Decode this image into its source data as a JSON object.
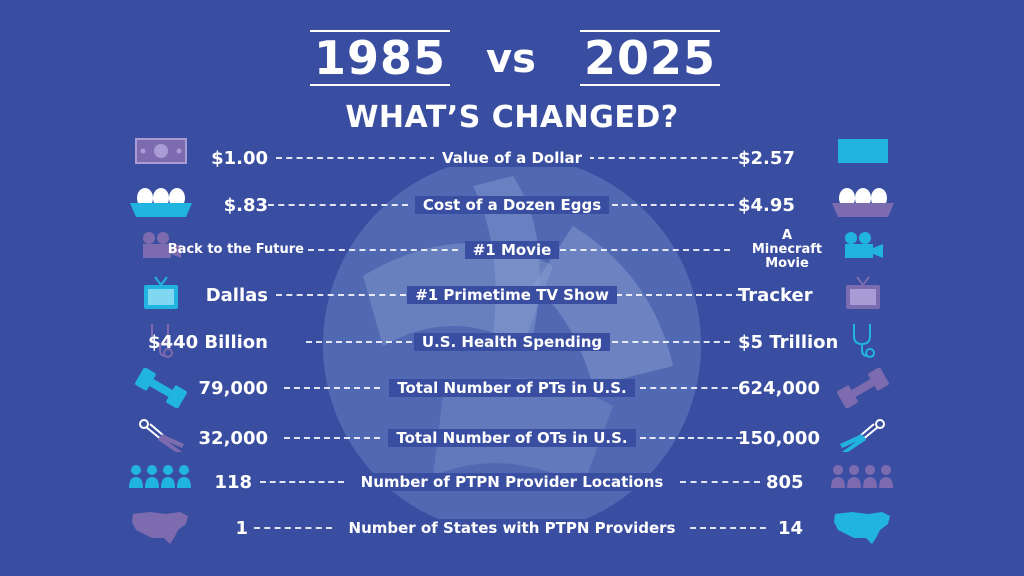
{
  "header": {
    "year_left": "1985",
    "vs": "vs",
    "year_right": "2025",
    "subtitle": "WHAT’S CHANGED?"
  },
  "rows": [
    {
      "left": "$1.00",
      "label": "Value of a Dollar",
      "right": "$2.57",
      "icon_left": "dollar-bill-icon",
      "icon_right": "dollar-bill-icon"
    },
    {
      "left": "$.83",
      "label": "Cost of a Dozen Eggs",
      "right": "$4.95",
      "icon_left": "egg-carton-icon",
      "icon_right": "egg-carton-icon"
    },
    {
      "left": "Back to the Future",
      "label": "#1 Movie",
      "right": "A Minecraft Movie",
      "icon_left": "movie-camera-icon",
      "icon_right": "movie-camera-icon"
    },
    {
      "left": "Dallas",
      "label": "#1 Primetime TV Show",
      "right": "Tracker",
      "icon_left": "tv-icon",
      "icon_right": "tv-icon"
    },
    {
      "left": "$440 Billion",
      "label": "U.S. Health Spending",
      "right": "$5 Trillion",
      "icon_left": "stethoscope-icon",
      "icon_right": "stethoscope-icon"
    },
    {
      "left": "79,000",
      "label": "Total Number of PTs in U.S.",
      "right": "624,000",
      "icon_left": "dumbbell-icon",
      "icon_right": "dumbbell-icon"
    },
    {
      "left": "32,000",
      "label": "Total Number of OTs in U.S.",
      "right": "150,000",
      "icon_left": "hand-grip-icon",
      "icon_right": "hand-grip-icon"
    },
    {
      "left": "118",
      "label": "Number of PTPN Provider Locations",
      "right": "805",
      "icon_left": "people-group-icon",
      "icon_right": "people-group-icon"
    },
    {
      "left": "1",
      "label": "Number of States with PTPN Providers",
      "right": "14",
      "icon_left": "usa-map-icon",
      "icon_right": "usa-map-icon"
    }
  ],
  "colors": {
    "background": "#3a4ea1",
    "icon_1985": "#7d6bb0",
    "icon_2025": "#22b4e0",
    "text": "#ffffff"
  }
}
